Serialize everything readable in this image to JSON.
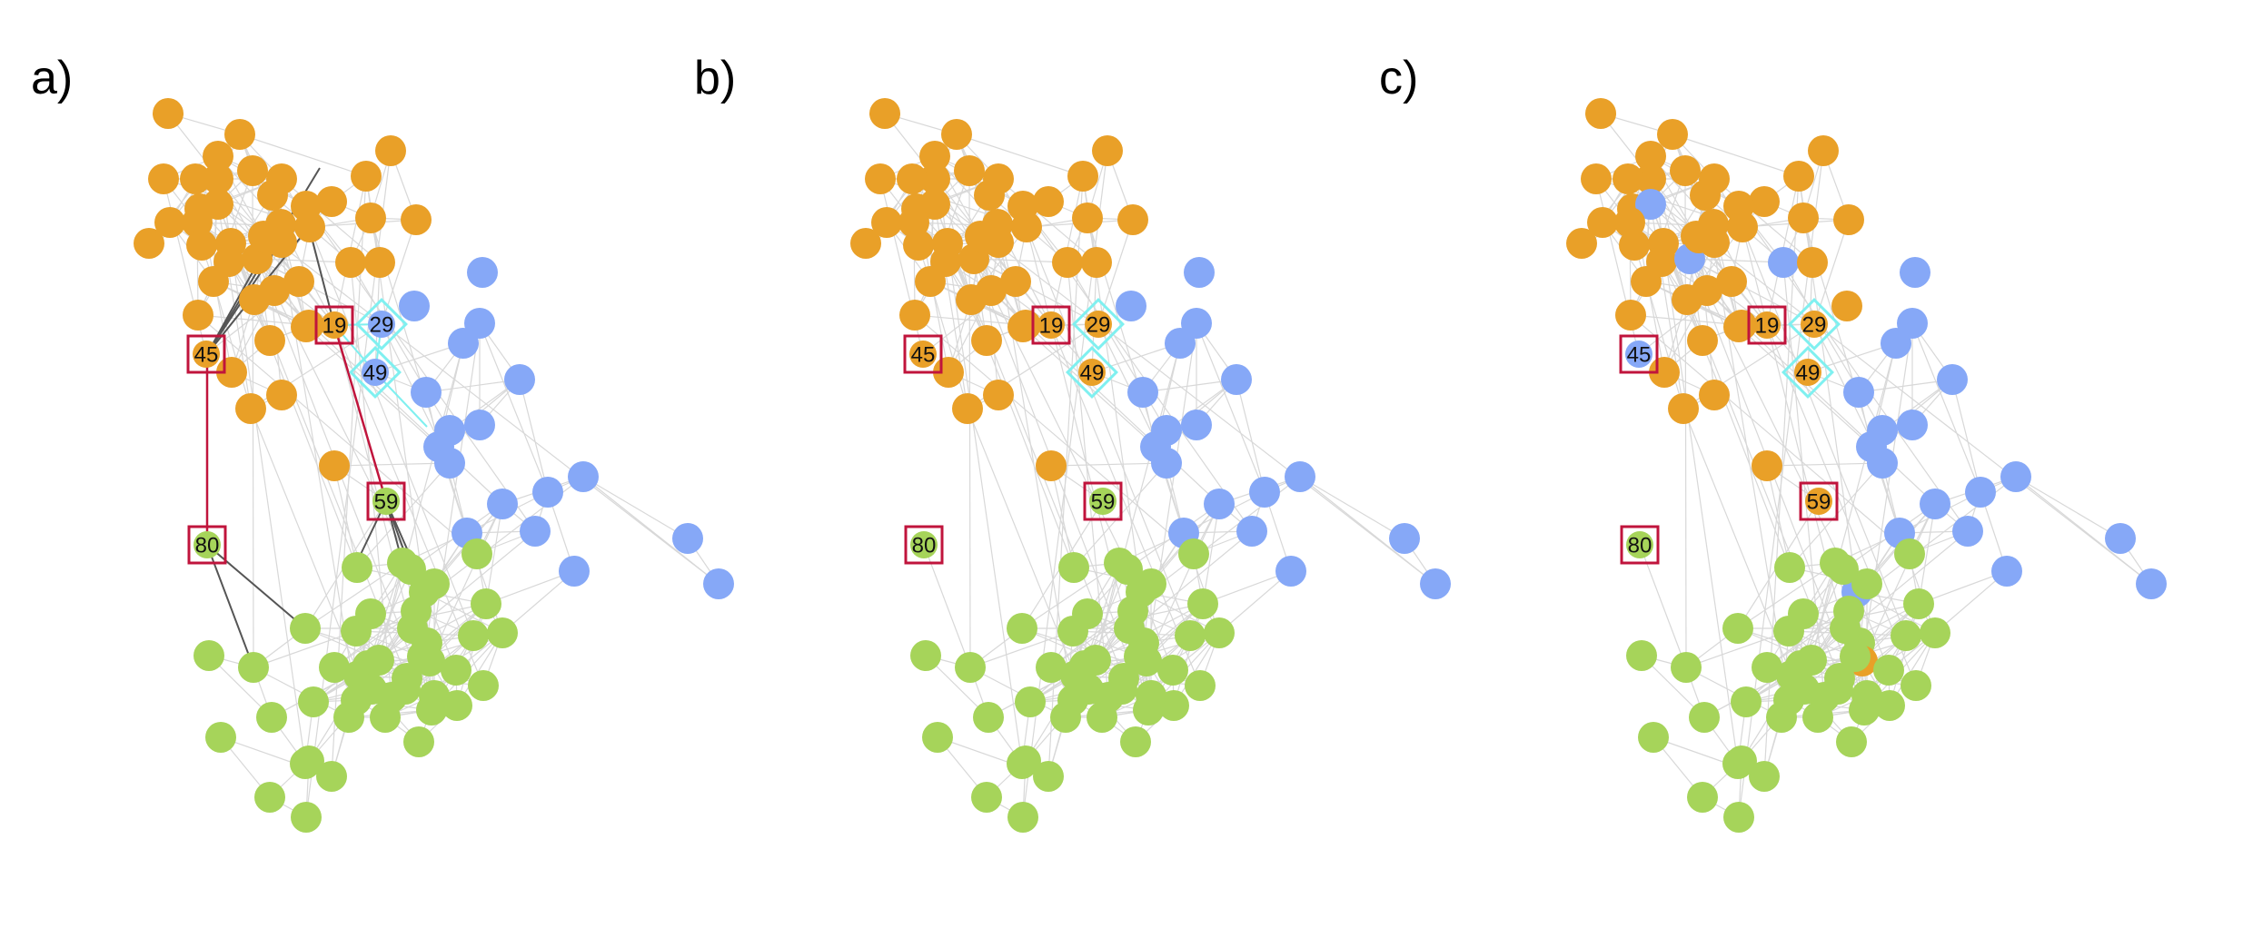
{
  "colors": {
    "orange": "#e9a028",
    "blue": "#86a8f7",
    "green": "#a6d45a",
    "edge": "#d8d8d8",
    "edge_dark": "#555555",
    "edge_red": "#c0143c",
    "square_border": "#c0143c",
    "diamond_border": "#7ff0f0"
  },
  "panels": [
    {
      "id": "a",
      "label": "a)",
      "nodes_override": {
        "19": "orange",
        "29": "blue",
        "45": "orange",
        "49": "blue",
        "59": "green",
        "80": "green"
      },
      "highlight_edges": true
    },
    {
      "id": "b",
      "label": "b)",
      "nodes_override": {
        "19": "orange",
        "29": "orange",
        "45": "orange",
        "49": "orange",
        "59": "green",
        "80": "green"
      },
      "highlight_edges": false
    },
    {
      "id": "c",
      "label": "c)",
      "nodes_override": {
        "19": "orange",
        "29": "orange",
        "45": "blue",
        "49": "orange",
        "59": "orange",
        "80": "green"
      },
      "highlight_edges": false
    }
  ],
  "labeled_nodes": [
    {
      "id": "19",
      "shape": "square"
    },
    {
      "id": "29",
      "shape": "diamond"
    },
    {
      "id": "45",
      "shape": "square"
    },
    {
      "id": "49",
      "shape": "diamond"
    },
    {
      "id": "59",
      "shape": "square"
    },
    {
      "id": "80",
      "shape": "square"
    }
  ]
}
